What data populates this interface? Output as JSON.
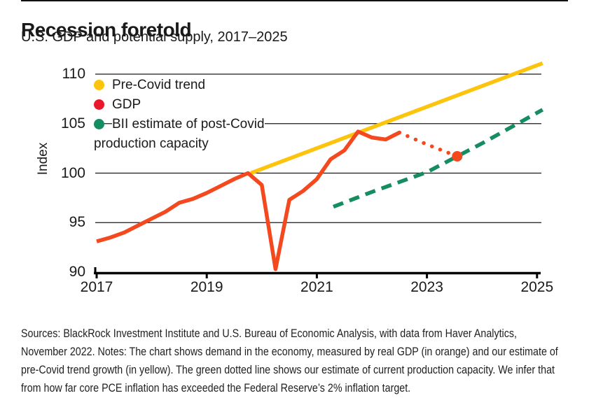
{
  "header": {
    "title": "Recession foretold",
    "subtitle": "U.S. GDP and potential supply, 2017–2025"
  },
  "legend": {
    "items": [
      {
        "label": "Pre-Covid trend",
        "color": "#fdc40d"
      },
      {
        "label": "GDP",
        "color": "#e8192c"
      },
      {
        "label": "BII estimate of post-Covid production capacity",
        "color": "#168d60"
      }
    ]
  },
  "chart_data": {
    "type": "line",
    "title": "Recession foretold",
    "subtitle": "U.S. GDP and potential supply, 2017–2025",
    "xlabel": "",
    "ylabel": "Index",
    "xlim": [
      2017,
      2025.15
    ],
    "ylim": [
      90,
      111.5
    ],
    "xticks": [
      2017,
      2019,
      2021,
      2023,
      2025
    ],
    "yticks": [
      90,
      95,
      100,
      105,
      110
    ],
    "grid": "horizontal",
    "legend_position": "inside-top-left",
    "series": [
      {
        "name": "Pre-Covid trend",
        "style": "solid",
        "color": "#fdc40d",
        "points": [
          [
            2019.8,
            100.0
          ],
          [
            2025.1,
            111.1
          ]
        ]
      },
      {
        "name": "BII estimate of post-Covid production capacity",
        "style": "dashed",
        "color": "#168d60",
        "points": [
          [
            2021.3,
            96.6
          ],
          [
            2022.0,
            98.1
          ],
          [
            2023.0,
            100.1
          ],
          [
            2024.0,
            103.0
          ],
          [
            2025.1,
            106.4
          ]
        ]
      },
      {
        "name": "GDP",
        "style": "solid",
        "color": "#f4481f",
        "points": [
          [
            2017.0,
            93.1
          ],
          [
            2017.25,
            93.5
          ],
          [
            2017.5,
            94.0
          ],
          [
            2017.75,
            94.7
          ],
          [
            2018.0,
            95.4
          ],
          [
            2018.25,
            96.1
          ],
          [
            2018.5,
            97.0
          ],
          [
            2018.75,
            97.4
          ],
          [
            2019.0,
            98.0
          ],
          [
            2019.25,
            98.7
          ],
          [
            2019.5,
            99.4
          ],
          [
            2019.75,
            100.0
          ],
          [
            2020.0,
            98.8
          ],
          [
            2020.25,
            90.3
          ],
          [
            2020.5,
            97.3
          ],
          [
            2020.75,
            98.2
          ],
          [
            2021.0,
            99.4
          ],
          [
            2021.25,
            101.4
          ],
          [
            2021.5,
            102.3
          ],
          [
            2021.75,
            104.2
          ],
          [
            2022.0,
            103.6
          ],
          [
            2022.25,
            103.4
          ],
          [
            2022.5,
            104.1
          ]
        ]
      },
      {
        "name": "GDP forecast",
        "style": "dotted",
        "color": "#f4481f",
        "points": [
          [
            2022.5,
            104.1
          ],
          [
            2023.0,
            102.9
          ],
          [
            2023.55,
            101.7
          ]
        ],
        "end_marker": {
          "x": 2023.55,
          "y": 101.7,
          "radius": 7.5
        }
      }
    ]
  },
  "footer": {
    "lines": [
      "Sources: BlackRock Investment Institute and U.S. Bureau of Economic Analysis, with data from Haver Analytics,",
      "November 2022. Notes: The chart shows demand in the economy, measured by real GDP (in orange) and our estimate of",
      "pre-Covid trend growth (in yellow). The green dotted line shows our estimate of current production capacity. We infer that",
      "from how far core PCE inflation has exceeded the Federal Reserve’s 2% inflation target."
    ]
  }
}
